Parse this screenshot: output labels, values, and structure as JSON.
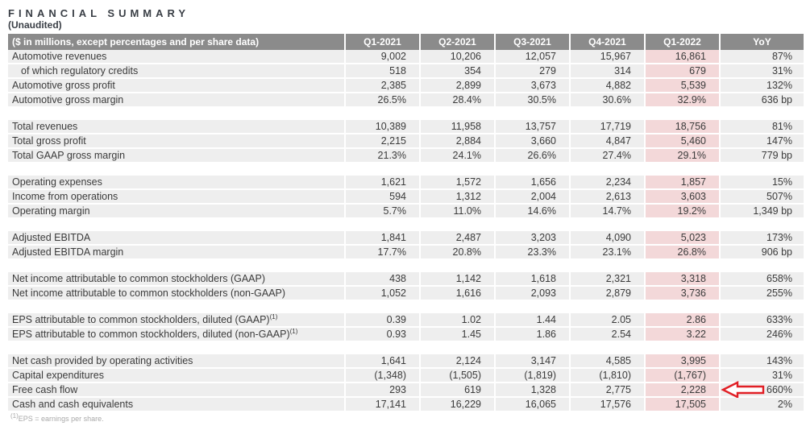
{
  "page": {
    "title": "FINANCIAL SUMMARY",
    "subtitle": "(Unaudited)",
    "footnote_superscript": "(1)",
    "footnote_text": "EPS = earnings per share."
  },
  "colors": {
    "header_bg": "#8b8b8b",
    "row_bg": "#eeeeee",
    "highlight_bg": "#f3d8d9",
    "arrow_red": "#e12026",
    "text": "#3b3b3b"
  },
  "icons": {
    "annotation_arrow": "left-block-arrow-icon"
  },
  "table": {
    "label_header": "($ in millions, except percentages and per share data)",
    "columns": [
      "Q1-2021",
      "Q2-2021",
      "Q3-2021",
      "Q4-2021",
      "Q1-2022",
      "YoY"
    ],
    "highlight_column": "Q1-2022",
    "groups": [
      {
        "rows": [
          {
            "label": "Automotive revenues",
            "values": [
              "9,002",
              "10,206",
              "12,057",
              "15,967",
              "16,861"
            ],
            "yoy": "87%"
          },
          {
            "label": "of which regulatory credits",
            "indent": true,
            "values": [
              "518",
              "354",
              "279",
              "314",
              "679"
            ],
            "yoy": "31%"
          },
          {
            "label": "Automotive gross profit",
            "values": [
              "2,385",
              "2,899",
              "3,673",
              "4,882",
              "5,539"
            ],
            "yoy": "132%"
          },
          {
            "label": "Automotive gross margin",
            "values": [
              "26.5%",
              "28.4%",
              "30.5%",
              "30.6%",
              "32.9%"
            ],
            "yoy": "636 bp"
          }
        ]
      },
      {
        "rows": [
          {
            "label": "Total revenues",
            "values": [
              "10,389",
              "11,958",
              "13,757",
              "17,719",
              "18,756"
            ],
            "yoy": "81%"
          },
          {
            "label": "Total gross profit",
            "values": [
              "2,215",
              "2,884",
              "3,660",
              "4,847",
              "5,460"
            ],
            "yoy": "147%"
          },
          {
            "label": "Total GAAP gross margin",
            "values": [
              "21.3%",
              "24.1%",
              "26.6%",
              "27.4%",
              "29.1%"
            ],
            "yoy": "779 bp"
          }
        ]
      },
      {
        "rows": [
          {
            "label": "Operating expenses",
            "values": [
              "1,621",
              "1,572",
              "1,656",
              "2,234",
              "1,857"
            ],
            "yoy": "15%"
          },
          {
            "label": "Income from operations",
            "values": [
              "594",
              "1,312",
              "2,004",
              "2,613",
              "3,603"
            ],
            "yoy": "507%"
          },
          {
            "label": "Operating margin",
            "values": [
              "5.7%",
              "11.0%",
              "14.6%",
              "14.7%",
              "19.2%"
            ],
            "yoy": "1,349 bp"
          }
        ]
      },
      {
        "rows": [
          {
            "label": "Adjusted EBITDA",
            "values": [
              "1,841",
              "2,487",
              "3,203",
              "4,090",
              "5,023"
            ],
            "yoy": "173%"
          },
          {
            "label": "Adjusted EBITDA margin",
            "values": [
              "17.7%",
              "20.8%",
              "23.3%",
              "23.1%",
              "26.8%"
            ],
            "yoy": "906 bp"
          }
        ]
      },
      {
        "rows": [
          {
            "label": "Net income attributable to common stockholders (GAAP)",
            "values": [
              "438",
              "1,142",
              "1,618",
              "2,321",
              "3,318"
            ],
            "yoy": "658%"
          },
          {
            "label": "Net income attributable to common stockholders (non-GAAP)",
            "values": [
              "1,052",
              "1,616",
              "2,093",
              "2,879",
              "3,736"
            ],
            "yoy": "255%"
          }
        ]
      },
      {
        "rows": [
          {
            "label": "EPS attributable to common stockholders, diluted (GAAP)",
            "sup": "(1)",
            "values": [
              "0.39",
              "1.02",
              "1.44",
              "2.05",
              "2.86"
            ],
            "yoy": "633%"
          },
          {
            "label": "EPS attributable to common stockholders, diluted (non-GAAP)",
            "sup": "(1)",
            "values": [
              "0.93",
              "1.45",
              "1.86",
              "2.54",
              "3.22"
            ],
            "yoy": "246%"
          }
        ]
      },
      {
        "rows": [
          {
            "label": "Net cash provided by operating activities",
            "values": [
              "1,641",
              "2,124",
              "3,147",
              "4,585",
              "3,995"
            ],
            "yoy": "143%"
          },
          {
            "label": "Capital expenditures",
            "values": [
              "(1,348)",
              "(1,505)",
              "(1,819)",
              "(1,810)",
              "(1,767)"
            ],
            "yoy": "31%"
          },
          {
            "label": "Free cash flow",
            "values": [
              "293",
              "619",
              "1,328",
              "2,775",
              "2,228"
            ],
            "yoy": "660%",
            "arrow": true
          },
          {
            "label": "Cash and cash equivalents",
            "values": [
              "17,141",
              "16,229",
              "16,065",
              "17,576",
              "17,505"
            ],
            "yoy": "2%"
          }
        ]
      }
    ]
  }
}
